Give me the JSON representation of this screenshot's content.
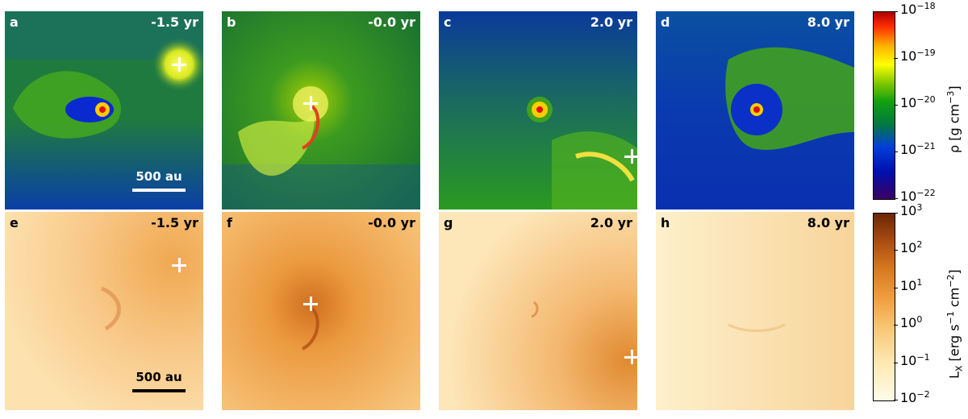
{
  "top_row": [
    {
      "label": "a",
      "time": "-1.5 yr"
    },
    {
      "label": "b",
      "time": "-0.0 yr"
    },
    {
      "label": "c",
      "time": "2.0 yr"
    },
    {
      "label": "d",
      "time": "8.0 yr"
    }
  ],
  "bottom_row": [
    {
      "label": "e",
      "time": "-1.5 yr"
    },
    {
      "label": "f",
      "time": "-0.0 yr"
    },
    {
      "label": "g",
      "time": "2.0 yr"
    },
    {
      "label": "h",
      "time": "8.0 yr"
    }
  ],
  "scale_bar": "500 au",
  "density_colorbar": {
    "label": "ρ [g cm",
    "label_exp": "−3",
    "label_end": "]",
    "ticks": [
      {
        "base": "10",
        "exp": "−18"
      },
      {
        "base": "10",
        "exp": "−19"
      },
      {
        "base": "10",
        "exp": "−20"
      },
      {
        "base": "10",
        "exp": "−21"
      },
      {
        "base": "10",
        "exp": "−22"
      }
    ]
  },
  "xray_colorbar": {
    "label_pre": "L",
    "label_sub": "X",
    "label_mid": " [erg s",
    "label_exp1": "−1",
    "label_mid2": " cm",
    "label_exp2": "−2",
    "label_end": "]",
    "ticks": [
      {
        "base": "10",
        "exp": "3"
      },
      {
        "base": "10",
        "exp": "2"
      },
      {
        "base": "10",
        "exp": "1"
      },
      {
        "base": "10",
        "exp": "0"
      },
      {
        "base": "10",
        "exp": "−1"
      },
      {
        "base": "10",
        "exp": "−2"
      }
    ]
  },
  "colors": {
    "density_background": "#2a8a2a",
    "density_low": "#0a2aa8",
    "xray_background": "#f8cc88"
  }
}
